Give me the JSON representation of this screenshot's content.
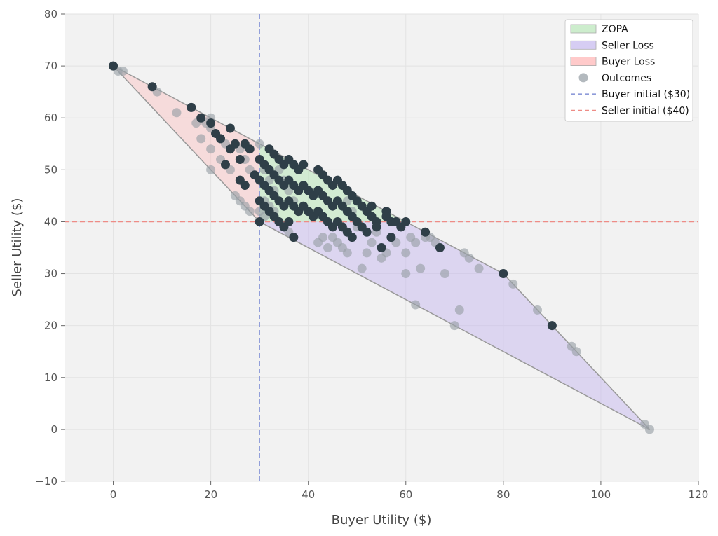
{
  "chart_data": {
    "type": "scatter",
    "title": "",
    "xlabel": "Buyer Utility ($)",
    "ylabel": "Seller Utility ($)",
    "xlim": [
      -10,
      120
    ],
    "ylim": [
      -10,
      80
    ],
    "xticks": [
      "0",
      "20",
      "40",
      "60",
      "80",
      "100",
      "120"
    ],
    "yticks": [
      "−10",
      "0",
      "10",
      "20",
      "30",
      "40",
      "50",
      "60",
      "70",
      "80"
    ],
    "grid": true,
    "legend_position": "top-right",
    "background_color": "#f2f2f2",
    "regions": [
      {
        "name": "Buyer Loss",
        "color": "#ffb3b3",
        "opacity": 0.35,
        "points": [
          [
            0,
            70
          ],
          [
            30,
            55
          ],
          [
            30,
            40
          ],
          [
            20,
            50
          ]
        ]
      },
      {
        "name": "Seller Loss",
        "color": "#c5b8ee",
        "opacity": 0.5,
        "points": [
          [
            30,
            40
          ],
          [
            60,
            40
          ],
          [
            80,
            30
          ],
          [
            82,
            28
          ],
          [
            110,
            0
          ],
          [
            36,
            37
          ]
        ]
      },
      {
        "name": "ZOPA",
        "color": "#b8e6b8",
        "opacity": 0.55,
        "points": [
          [
            30,
            55
          ],
          [
            44,
            48
          ],
          [
            60,
            40
          ],
          [
            30,
            40
          ]
        ]
      }
    ],
    "hull": [
      [
        0,
        70
      ],
      [
        30,
        55
      ],
      [
        60,
        40
      ],
      [
        80,
        30
      ],
      [
        82,
        28
      ],
      [
        110,
        0
      ],
      [
        36,
        37
      ],
      [
        30,
        40
      ],
      [
        20,
        50
      ]
    ],
    "reference_lines": [
      {
        "name": "Buyer initial ($30)",
        "orientation": "vertical",
        "value": 30,
        "color": "#8e9bd9",
        "dash": "dashed"
      },
      {
        "name": "Seller initial ($40)",
        "orientation": "horizontal",
        "value": 40,
        "color": "#ee8c86",
        "dash": "dashed"
      }
    ],
    "series": [
      {
        "name": "Outcomes",
        "color": "#9aa1a8",
        "opacity": 0.65,
        "points": [
          [
            0,
            70
          ],
          [
            1,
            69
          ],
          [
            2,
            69
          ],
          [
            9,
            65
          ],
          [
            13,
            61
          ],
          [
            16,
            62
          ],
          [
            17,
            59
          ],
          [
            18,
            56
          ],
          [
            18,
            60
          ],
          [
            19,
            59
          ],
          [
            20,
            60
          ],
          [
            20,
            58
          ],
          [
            20,
            54
          ],
          [
            20,
            50
          ],
          [
            21,
            57
          ],
          [
            22,
            52
          ],
          [
            22,
            56
          ],
          [
            23,
            51
          ],
          [
            23,
            55
          ],
          [
            24,
            50
          ],
          [
            25,
            45
          ],
          [
            26,
            44
          ],
          [
            27,
            43
          ],
          [
            28,
            42
          ],
          [
            26,
            54
          ],
          [
            27,
            52
          ],
          [
            28,
            50
          ],
          [
            29,
            49
          ],
          [
            30,
            55
          ],
          [
            31,
            50
          ],
          [
            32,
            48
          ],
          [
            33,
            46
          ],
          [
            31,
            44
          ],
          [
            32,
            43
          ],
          [
            33,
            42
          ],
          [
            34,
            40
          ],
          [
            35,
            39
          ],
          [
            36,
            38
          ],
          [
            30,
            42
          ],
          [
            31,
            41
          ],
          [
            34,
            50
          ],
          [
            35,
            48
          ],
          [
            36,
            46
          ],
          [
            37,
            44
          ],
          [
            38,
            42
          ],
          [
            39,
            43
          ],
          [
            40,
            42
          ],
          [
            41,
            41
          ],
          [
            42,
            36
          ],
          [
            43,
            37
          ],
          [
            44,
            35
          ],
          [
            45,
            37
          ],
          [
            46,
            36
          ],
          [
            47,
            35
          ],
          [
            48,
            34
          ],
          [
            48,
            44
          ],
          [
            49,
            42
          ],
          [
            50,
            39
          ],
          [
            51,
            31
          ],
          [
            52,
            34
          ],
          [
            53,
            36
          ],
          [
            54,
            38
          ],
          [
            55,
            33
          ],
          [
            56,
            34
          ],
          [
            57,
            40
          ],
          [
            58,
            36
          ],
          [
            59,
            39
          ],
          [
            60,
            34
          ],
          [
            60,
            30
          ],
          [
            61,
            37
          ],
          [
            62,
            36
          ],
          [
            62,
            24
          ],
          [
            63,
            31
          ],
          [
            64,
            37
          ],
          [
            65,
            37
          ],
          [
            66,
            36
          ],
          [
            68,
            30
          ],
          [
            70,
            20
          ],
          [
            71,
            23
          ],
          [
            72,
            34
          ],
          [
            73,
            33
          ],
          [
            75,
            31
          ],
          [
            82,
            28
          ],
          [
            87,
            23
          ],
          [
            94,
            16
          ],
          [
            95,
            15
          ],
          [
            109,
            1
          ],
          [
            110,
            0
          ]
        ]
      },
      {
        "name": "",
        "color": "#2f3f48",
        "opacity": 1,
        "points": [
          [
            0,
            70
          ],
          [
            8,
            66
          ],
          [
            16,
            62
          ],
          [
            18,
            60
          ],
          [
            20,
            59
          ],
          [
            21,
            57
          ],
          [
            22,
            56
          ],
          [
            23,
            51
          ],
          [
            24,
            58
          ],
          [
            24,
            54
          ],
          [
            25,
            55
          ],
          [
            26,
            48
          ],
          [
            26,
            52
          ],
          [
            27,
            47
          ],
          [
            27,
            55
          ],
          [
            28,
            54
          ],
          [
            29,
            49
          ],
          [
            30,
            52
          ],
          [
            30,
            48
          ],
          [
            30,
            44
          ],
          [
            30,
            40
          ],
          [
            31,
            51
          ],
          [
            31,
            47
          ],
          [
            31,
            43
          ],
          [
            32,
            54
          ],
          [
            32,
            50
          ],
          [
            32,
            46
          ],
          [
            32,
            42
          ],
          [
            33,
            53
          ],
          [
            33,
            49
          ],
          [
            33,
            45
          ],
          [
            33,
            41
          ],
          [
            34,
            52
          ],
          [
            34,
            48
          ],
          [
            34,
            44
          ],
          [
            34,
            40
          ],
          [
            35,
            51
          ],
          [
            35,
            47
          ],
          [
            35,
            43
          ],
          [
            35,
            39
          ],
          [
            36,
            52
          ],
          [
            36,
            48
          ],
          [
            36,
            44
          ],
          [
            36,
            40
          ],
          [
            37,
            51
          ],
          [
            37,
            47
          ],
          [
            37,
            43
          ],
          [
            37,
            37
          ],
          [
            38,
            50
          ],
          [
            38,
            46
          ],
          [
            38,
            42
          ],
          [
            39,
            51
          ],
          [
            39,
            47
          ],
          [
            39,
            43
          ],
          [
            40,
            46
          ],
          [
            40,
            42
          ],
          [
            41,
            45
          ],
          [
            41,
            41
          ],
          [
            42,
            50
          ],
          [
            42,
            46
          ],
          [
            42,
            42
          ],
          [
            43,
            49
          ],
          [
            43,
            45
          ],
          [
            43,
            41
          ],
          [
            44,
            48
          ],
          [
            44,
            44
          ],
          [
            44,
            40
          ],
          [
            45,
            47
          ],
          [
            45,
            43
          ],
          [
            45,
            39
          ],
          [
            46,
            48
          ],
          [
            46,
            44
          ],
          [
            46,
            40
          ],
          [
            47,
            47
          ],
          [
            47,
            43
          ],
          [
            47,
            39
          ],
          [
            48,
            46
          ],
          [
            48,
            42
          ],
          [
            48,
            38
          ],
          [
            49,
            45
          ],
          [
            49,
            41
          ],
          [
            49,
            37
          ],
          [
            50,
            44
          ],
          [
            50,
            40
          ],
          [
            51,
            43
          ],
          [
            51,
            39
          ],
          [
            52,
            42
          ],
          [
            52,
            38
          ],
          [
            53,
            43
          ],
          [
            53,
            41
          ],
          [
            54,
            40
          ],
          [
            54,
            39
          ],
          [
            55,
            35
          ],
          [
            56,
            42
          ],
          [
            56,
            41
          ],
          [
            57,
            40
          ],
          [
            57,
            37
          ],
          [
            58,
            40
          ],
          [
            59,
            39
          ],
          [
            60,
            40
          ],
          [
            64,
            38
          ],
          [
            67,
            35
          ],
          [
            80,
            30
          ],
          [
            90,
            20
          ]
        ]
      }
    ],
    "legend": [
      {
        "label": "ZOPA",
        "kind": "patch",
        "color": "#b8e6b8"
      },
      {
        "label": "Seller Loss",
        "kind": "patch",
        "color": "#c5b8ee"
      },
      {
        "label": "Buyer Loss",
        "kind": "patch",
        "color": "#ffb3b3"
      },
      {
        "label": "Outcomes",
        "kind": "marker",
        "color": "#9aa1a8"
      },
      {
        "label": "Buyer initial ($30)",
        "kind": "line",
        "color": "#8e9bd9"
      },
      {
        "label": "Seller initial ($40)",
        "kind": "line",
        "color": "#ee8c86"
      }
    ]
  }
}
